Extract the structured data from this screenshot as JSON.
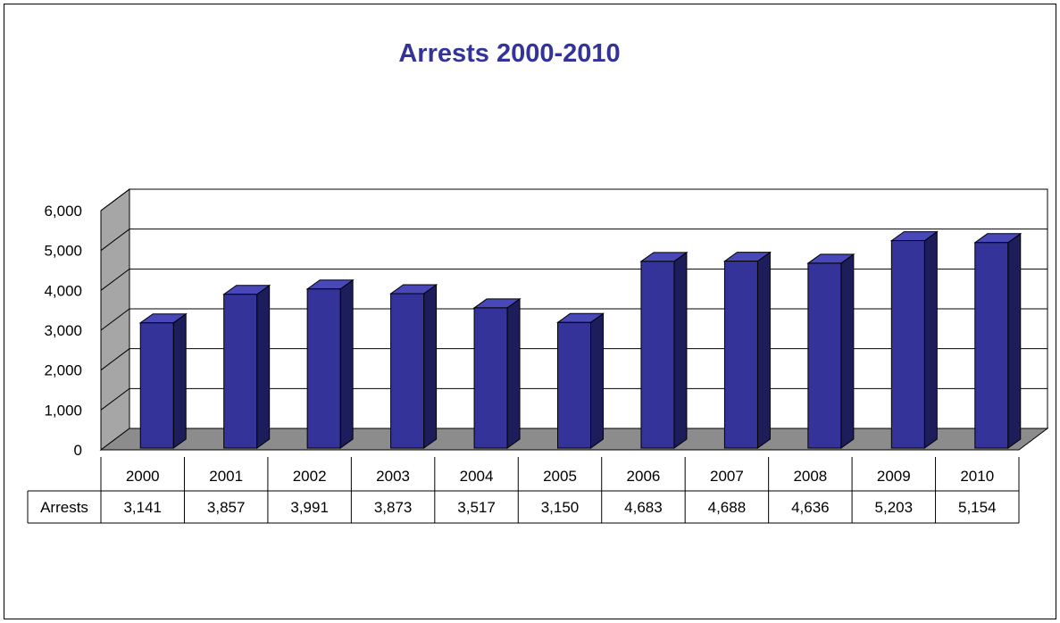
{
  "chart_data": {
    "type": "bar",
    "title": "Arrests 2000-2010",
    "xlabel": "",
    "ylabel": "",
    "categories": [
      "2000",
      "2001",
      "2002",
      "2003",
      "2004",
      "2005",
      "2006",
      "2007",
      "2008",
      "2009",
      "2010"
    ],
    "series": [
      {
        "name": "Arrests",
        "values": [
          3141,
          3857,
          3991,
          3873,
          3517,
          3150,
          4683,
          4688,
          4636,
          5203,
          5154
        ],
        "labels": [
          "3,141",
          "3,857",
          "3,991",
          "3,873",
          "3,517",
          "3,150",
          "4,683",
          "4,688",
          "4,636",
          "5,203",
          "5,154"
        ]
      }
    ],
    "ylim": [
      0,
      6000
    ],
    "yticks": [
      0,
      1000,
      2000,
      3000,
      4000,
      5000,
      6000
    ],
    "ytick_labels": [
      "0",
      "1,000",
      "2,000",
      "3,000",
      "4,000",
      "5,000",
      "6,000"
    ],
    "grid": true,
    "data_table": true,
    "style": "3d-column",
    "colors": {
      "bar_front": "#333399",
      "bar_side": "#1d1d5c",
      "bar_top": "#4848b8",
      "floor": "#8c8c8c",
      "wall": "#a6a6a6",
      "title": "#333399"
    }
  }
}
